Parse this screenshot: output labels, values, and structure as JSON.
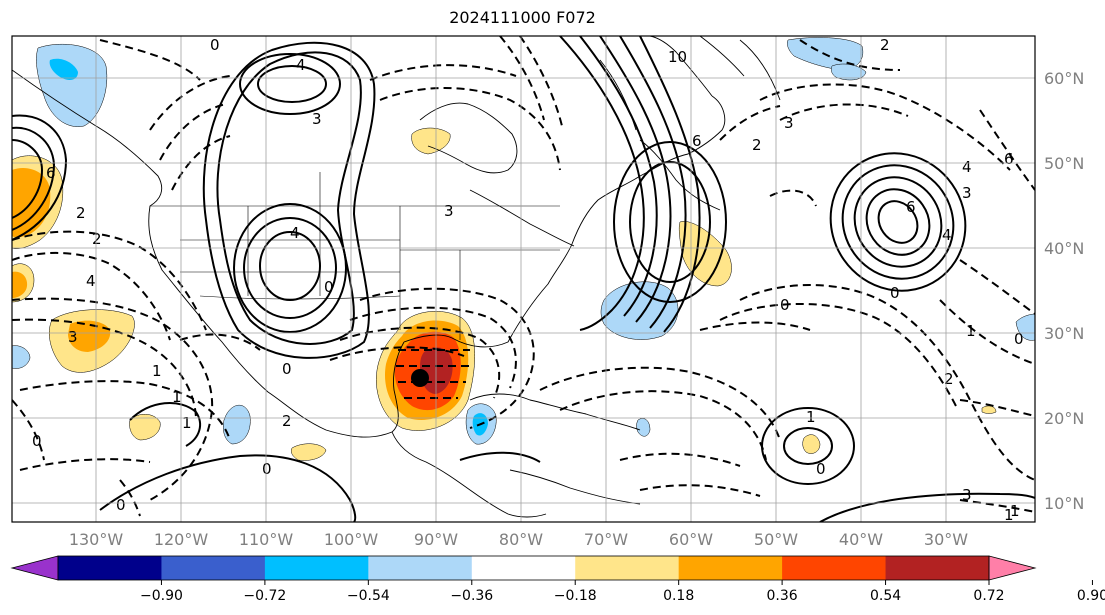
{
  "title": "2024111000 F072",
  "map": {
    "projection": "cylindrical",
    "lon_range": [
      -142,
      -20
    ],
    "lat_range": [
      7,
      66
    ],
    "gridlines": true,
    "lon_labels": [
      "130°W",
      "120°W",
      "110°W",
      "100°W",
      "90°W",
      "80°W",
      "70°W",
      "60°W",
      "50°W",
      "40°W",
      "30°W"
    ],
    "lat_labels": [
      "60°N",
      "50°N",
      "40°N",
      "30°N",
      "20°N",
      "10°N"
    ],
    "storm_marker": {
      "lon": -91,
      "lat": 25,
      "color": "#000000"
    }
  },
  "colorbar": {
    "tick_labels": [
      "−0.90",
      "−0.72",
      "−0.54",
      "−0.36",
      "−0.18",
      "0.18",
      "0.36",
      "0.54",
      "0.72",
      "0.90"
    ],
    "colors": [
      "#9932cc",
      "#00008b",
      "#3a5fcd",
      "#00bfff",
      "#add8f8",
      "#ffffff",
      "#ffe58a",
      "#ffa500",
      "#ff4500",
      "#b22222",
      "#ff7fa8"
    ],
    "extend": "both"
  },
  "contour_labels": [
    {
      "text": "0"
    },
    {
      "text": "4"
    },
    {
      "text": "3"
    },
    {
      "text": "4"
    },
    {
      "text": "2"
    },
    {
      "text": "6"
    },
    {
      "text": "2"
    },
    {
      "text": "4"
    },
    {
      "text": "3"
    },
    {
      "text": "0"
    },
    {
      "text": "1"
    },
    {
      "text": "1"
    },
    {
      "text": "2"
    },
    {
      "text": "0"
    },
    {
      "text": "0"
    },
    {
      "text": "0"
    },
    {
      "text": "1"
    },
    {
      "text": "0"
    },
    {
      "text": "3"
    },
    {
      "text": "10"
    },
    {
      "text": "6"
    },
    {
      "text": "2"
    },
    {
      "text": "3"
    },
    {
      "text": "0"
    },
    {
      "text": "2"
    },
    {
      "text": "6"
    },
    {
      "text": "4"
    },
    {
      "text": "3"
    },
    {
      "text": "4"
    },
    {
      "text": "0"
    },
    {
      "text": "1"
    },
    {
      "text": "2"
    },
    {
      "text": "0"
    },
    {
      "text": "1"
    },
    {
      "text": "0"
    },
    {
      "text": "1"
    },
    {
      "text": "6"
    },
    {
      "text": "3"
    },
    {
      "text": "1"
    }
  ]
}
